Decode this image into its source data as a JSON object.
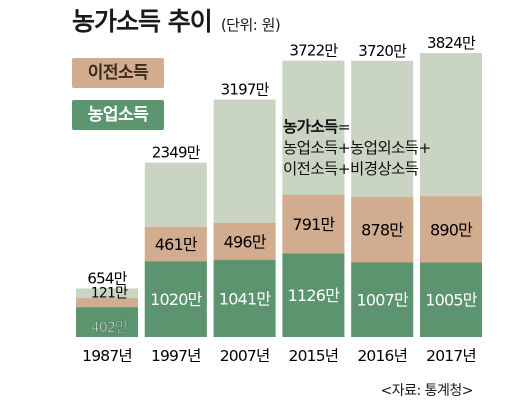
{
  "title": "농가소득 추이",
  "unit": "(단위: 원)",
  "legend": [
    {
      "label": "이전소득",
      "color": "#d2ac8f"
    },
    {
      "label": "농업소득",
      "color": "#5c9470"
    }
  ],
  "note": {
    "title": "농가소득",
    "title_suffix": "=",
    "line1": "농업소득+농업외소득+",
    "line2": "이전소득+비경상소득"
  },
  "source": "<자료: 통계청>",
  "colors": {
    "total": "#c9d4c2",
    "transfer": "#d2ac8f",
    "farm": "#5c9470"
  },
  "chart_data": {
    "type": "bar",
    "categories": [
      "1987년",
      "1997년",
      "2007년",
      "2015년",
      "2016년",
      "2017년"
    ],
    "series": [
      {
        "name": "농가소득",
        "values": [
          654,
          2349,
          3197,
          3722,
          3720,
          3824
        ],
        "labels": [
          "654만",
          "2349만",
          "3197만",
          "3722만",
          "3720만",
          "3824만"
        ]
      },
      {
        "name": "이전소득",
        "values": [
          121,
          461,
          496,
          791,
          878,
          890
        ],
        "labels": [
          "121만",
          "461만",
          "496만",
          "791만",
          "878만",
          "890만"
        ]
      },
      {
        "name": "농업소득",
        "values": [
          402,
          1020,
          1041,
          1126,
          1007,
          1005
        ],
        "labels": [
          "402만",
          "1020만",
          "1041만",
          "1126만",
          "1007만",
          "1005만"
        ]
      }
    ],
    "unit": "만원",
    "ylim": [
      0,
      4000
    ]
  }
}
